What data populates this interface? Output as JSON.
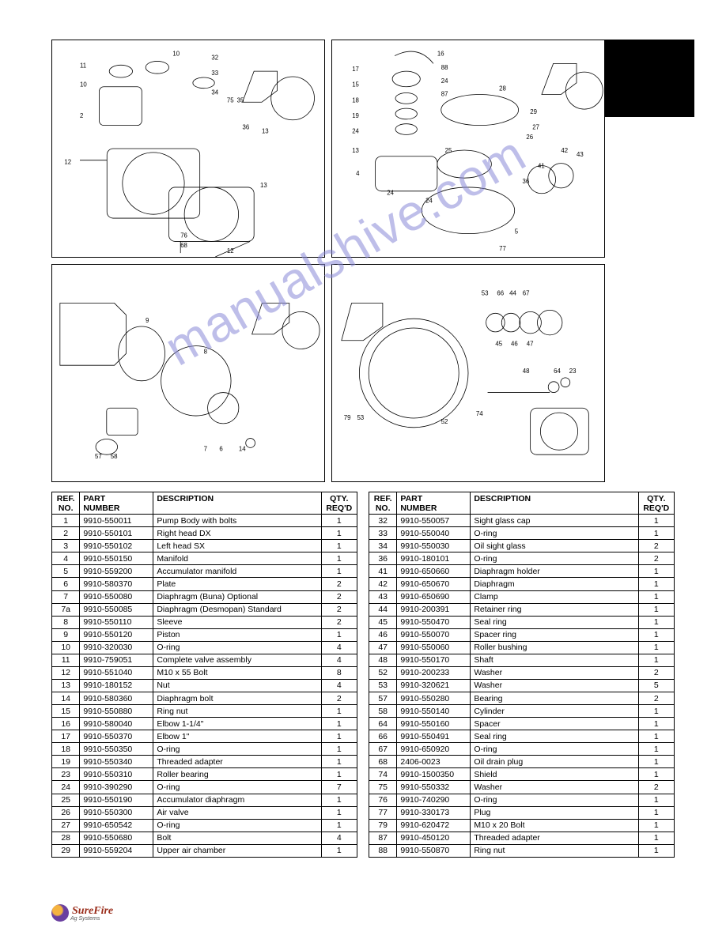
{
  "watermark": "manualshive.com",
  "footer": {
    "brand": "SureFire",
    "sub": "Ag Systems"
  },
  "table_headers": {
    "ref": "REF.\nNO.",
    "part": "PART\nNUMBER",
    "desc": "DESCRIPTION",
    "qty": "QTY.\nREQ'D"
  },
  "left_table": [
    {
      "ref": "1",
      "part": "9910-550011",
      "desc": "Pump Body with bolts",
      "qty": "1",
      "group": 0
    },
    {
      "ref": "2",
      "part": "9910-550101",
      "desc": "Right head DX",
      "qty": "1",
      "group": 0
    },
    {
      "ref": "3",
      "part": "9910-550102",
      "desc": "Left head SX",
      "qty": "1",
      "group": 0
    },
    {
      "ref": "4",
      "part": "9910-550150",
      "desc": "Manifold",
      "qty": "1",
      "group": 1
    },
    {
      "ref": "5",
      "part": "9910-559200",
      "desc": "Accumulator manifold",
      "qty": "1",
      "group": 1
    },
    {
      "ref": "6",
      "part": "9910-580370",
      "desc": "Plate",
      "qty": "2",
      "group": 1
    },
    {
      "ref": "7",
      "part": "9910-550080",
      "desc": "Diaphragm (Buna) Optional",
      "qty": "2",
      "group": 2
    },
    {
      "ref": "7a",
      "part": "9910-550085",
      "desc": "Diaphragm (Desmopan) Standard",
      "qty": "2",
      "group": 2
    },
    {
      "ref": "8",
      "part": "9910-550110",
      "desc": "Sleeve",
      "qty": "2",
      "group": 2
    },
    {
      "ref": "9",
      "part": "9910-550120",
      "desc": "Piston",
      "qty": "1",
      "group": 3
    },
    {
      "ref": "10",
      "part": "9910-320030",
      "desc": "O-ring",
      "qty": "4",
      "group": 3
    },
    {
      "ref": "11",
      "part": "9910-759051",
      "desc": "Complete valve assembly",
      "qty": "4",
      "group": 3
    },
    {
      "ref": "12",
      "part": "9910-551040",
      "desc": "M10 x 55 Bolt",
      "qty": "8",
      "group": 4
    },
    {
      "ref": "13",
      "part": "9910-180152",
      "desc": "Nut",
      "qty": "4",
      "group": 4
    },
    {
      "ref": "14",
      "part": "9910-580360",
      "desc": "Diaphragm bolt",
      "qty": "2",
      "group": 4
    },
    {
      "ref": "15",
      "part": "9910-550880",
      "desc": "Ring nut",
      "qty": "1",
      "group": 5
    },
    {
      "ref": "16",
      "part": "9910-580040",
      "desc": "Elbow 1-1/4\"",
      "qty": "1",
      "group": 5
    },
    {
      "ref": "17",
      "part": "9910-550370",
      "desc": "Elbow 1\"",
      "qty": "1",
      "group": 5
    },
    {
      "ref": "18",
      "part": "9910-550350",
      "desc": "O-ring",
      "qty": "1",
      "group": 6
    },
    {
      "ref": "19",
      "part": "9910-550340",
      "desc": "Threaded adapter",
      "qty": "1",
      "group": 6
    },
    {
      "ref": "23",
      "part": "9910-550310",
      "desc": "Roller bearing",
      "qty": "1",
      "group": 6
    },
    {
      "ref": "24",
      "part": "9910-390290",
      "desc": "O-ring",
      "qty": "7",
      "group": 7
    },
    {
      "ref": "25",
      "part": "9910-550190",
      "desc": "Accumulator diaphragm",
      "qty": "1",
      "group": 7
    },
    {
      "ref": "26",
      "part": "9910-550300",
      "desc": "Air valve",
      "qty": "1",
      "group": 7
    },
    {
      "ref": "27",
      "part": "9910-650542",
      "desc": "O-ring",
      "qty": "1",
      "group": 8
    },
    {
      "ref": "28",
      "part": "9910-550680",
      "desc": "Bolt",
      "qty": "4",
      "group": 8
    },
    {
      "ref": "29",
      "part": "9910-559204",
      "desc": "Upper air chamber",
      "qty": "1",
      "group": 8
    }
  ],
  "right_table": [
    {
      "ref": "32",
      "part": "9910-550057",
      "desc": "Sight glass cap",
      "qty": "1",
      "group": 0
    },
    {
      "ref": "33",
      "part": "9910-550040",
      "desc": "O-ring",
      "qty": "1",
      "group": 0
    },
    {
      "ref": "34",
      "part": "9910-550030",
      "desc": "Oil sight glass",
      "qty": "2",
      "group": 0
    },
    {
      "ref": "36",
      "part": "9910-180101",
      "desc": "O-ring",
      "qty": "2",
      "group": 1
    },
    {
      "ref": "41",
      "part": "9910-650660",
      "desc": "Diaphragm holder",
      "qty": "1",
      "group": 1
    },
    {
      "ref": "42",
      "part": "9910-650670",
      "desc": "Diaphragm",
      "qty": "1",
      "group": 1
    },
    {
      "ref": "43",
      "part": "9910-650690",
      "desc": "Clamp",
      "qty": "1",
      "group": 2
    },
    {
      "ref": "44",
      "part": "9910-200391",
      "desc": "Retainer ring",
      "qty": "1",
      "group": 2
    },
    {
      "ref": "45",
      "part": "9910-550470",
      "desc": "Seal ring",
      "qty": "1",
      "group": 2
    },
    {
      "ref": "46",
      "part": "9910-550070",
      "desc": "Spacer ring",
      "qty": "1",
      "group": 3
    },
    {
      "ref": "47",
      "part": "9910-550060",
      "desc": "Roller bushing",
      "qty": "1",
      "group": 3
    },
    {
      "ref": "48",
      "part": "9910-550170",
      "desc": "Shaft",
      "qty": "1",
      "group": 3
    },
    {
      "ref": "52",
      "part": "9910-200233",
      "desc": "Washer",
      "qty": "2",
      "group": 4
    },
    {
      "ref": "53",
      "part": "9910-320621",
      "desc": "Washer",
      "qty": "5",
      "group": 4
    },
    {
      "ref": "57",
      "part": "9910-550280",
      "desc": "Bearing",
      "qty": "2",
      "group": 4
    },
    {
      "ref": "58",
      "part": "9910-550140",
      "desc": "Cylinder",
      "qty": "1",
      "group": 5
    },
    {
      "ref": "64",
      "part": "9910-550160",
      "desc": "Spacer",
      "qty": "1",
      "group": 5
    },
    {
      "ref": "66",
      "part": "9910-550491",
      "desc": "Seal ring",
      "qty": "1",
      "group": 5
    },
    {
      "ref": "67",
      "part": "9910-650920",
      "desc": "O-ring",
      "qty": "1",
      "group": 6
    },
    {
      "ref": "68",
      "part": "2406-0023",
      "desc": "Oil drain plug",
      "qty": "1",
      "group": 6
    },
    {
      "ref": "74",
      "part": "9910-1500350",
      "desc": "Shield",
      "qty": "1",
      "group": 6
    },
    {
      "ref": "75",
      "part": "9910-550332",
      "desc": "Washer",
      "qty": "2",
      "group": 7
    },
    {
      "ref": "76",
      "part": "9910-740290",
      "desc": "O-ring",
      "qty": "1",
      "group": 7
    },
    {
      "ref": "77",
      "part": "9910-330173",
      "desc": "Plug",
      "qty": "1",
      "group": 7
    },
    {
      "ref": "79",
      "part": "9910-620472",
      "desc": "M10 x 20 Bolt",
      "qty": "1",
      "group": 8
    },
    {
      "ref": "87",
      "part": "9910-450120",
      "desc": "Threaded adapter",
      "qty": "1",
      "group": 8
    },
    {
      "ref": "88",
      "part": "9910-550870",
      "desc": "Ring nut",
      "qty": "1",
      "group": 8
    }
  ],
  "styling": {
    "font_family": "Arial",
    "font_size_table": 10.5,
    "font_size_diagram_label": 8,
    "border_color": "#000000",
    "background": "#ffffff",
    "watermark_color": "#8a8ad8",
    "watermark_rotation_deg": -30,
    "brand_color": "#9a2c1a",
    "black_box": {
      "w": 120,
      "h": 98,
      "color": "#000000"
    }
  },
  "diagram_labels": {
    "d1": [
      "11",
      "10",
      "2",
      "12",
      "10",
      "32",
      "33",
      "34",
      "75",
      "35",
      "36",
      "13",
      "13",
      "76",
      "68",
      "12"
    ],
    "d2": [
      "17",
      "15",
      "18",
      "19",
      "24",
      "13",
      "4",
      "16",
      "88",
      "24",
      "87",
      "28",
      "24",
      "25",
      "5",
      "29",
      "27",
      "26",
      "43",
      "42",
      "41",
      "36",
      "24",
      "77"
    ],
    "d3": [
      "9",
      "8",
      "57",
      "58",
      "7",
      "6",
      "14"
    ],
    "d4": [
      "53",
      "66",
      "44",
      "67",
      "45",
      "46",
      "47",
      "48",
      "64",
      "23",
      "79",
      "53",
      "52",
      "74"
    ]
  }
}
